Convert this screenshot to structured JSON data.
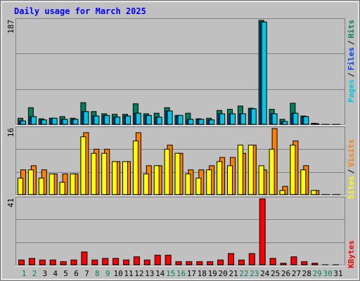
{
  "title": "Daily usage for March 2025",
  "legend_separator": "/",
  "chart_data": [
    {
      "type": "bar",
      "ylim": [
        0,
        187
      ],
      "yticks": [
        187
      ],
      "series": [
        {
          "name": "Hits",
          "color": "#00805c",
          "values": [
            11,
            30,
            10,
            11,
            14,
            11,
            39,
            23,
            19,
            18,
            18,
            37,
            19,
            20,
            30,
            16,
            20,
            10,
            11,
            25,
            27,
            33,
            29,
            187,
            27,
            9,
            38,
            15,
            2,
            0,
            0
          ]
        },
        {
          "name": "Files",
          "color": "#0040ff",
          "values": [
            6,
            14,
            8,
            11,
            9,
            9,
            23,
            15,
            16,
            13,
            15,
            20,
            16,
            13,
            24,
            16,
            9,
            9,
            8,
            19,
            19,
            19,
            28,
            184,
            19,
            5,
            20,
            14,
            1,
            0,
            0
          ]
        },
        {
          "name": "Pages",
          "color": "#00c8e0",
          "values": [
            6,
            14,
            8,
            11,
            9,
            9,
            23,
            15,
            16,
            13,
            15,
            20,
            16,
            13,
            24,
            16,
            9,
            9,
            8,
            19,
            19,
            19,
            28,
            184,
            19,
            5,
            20,
            14,
            1,
            0,
            0
          ]
        }
      ]
    },
    {
      "type": "bar",
      "ylim": [
        0,
        16
      ],
      "yticks": [
        16
      ],
      "series": [
        {
          "name": "Visits",
          "color": "#ff8000",
          "values": [
            6,
            7,
            6,
            5,
            5,
            5,
            15,
            11,
            11,
            8,
            8,
            15,
            7,
            7,
            12,
            10,
            6,
            6,
            7,
            9,
            9,
            10,
            12,
            6,
            16,
            2,
            13,
            7,
            1,
            0,
            0
          ]
        },
        {
          "name": "Sites",
          "color": "#ffff00",
          "values": [
            4,
            6,
            4,
            5,
            3,
            5,
            14,
            10,
            10,
            8,
            8,
            13,
            5,
            7,
            11,
            10,
            5,
            4,
            6,
            8,
            7,
            12,
            12,
            7,
            11,
            1,
            12,
            6,
            1,
            0,
            0
          ]
        }
      ]
    },
    {
      "type": "bar",
      "ylim": [
        0,
        41
      ],
      "yticks": [
        41
      ],
      "categories": [
        "1",
        "2",
        "3",
        "4",
        "5",
        "6",
        "7",
        "8",
        "9",
        "10",
        "11",
        "12",
        "13",
        "14",
        "15",
        "16",
        "17",
        "18",
        "19",
        "20",
        "21",
        "22",
        "23",
        "24",
        "25",
        "26",
        "27",
        "28",
        "29",
        "30",
        "31"
      ],
      "category_colors": [
        "#00805c",
        "#00805c",
        "#000000",
        "#000000",
        "#000000",
        "#000000",
        "#000000",
        "#00805c",
        "#00805c",
        "#000000",
        "#000000",
        "#000000",
        "#000000",
        "#000000",
        "#00805c",
        "#00805c",
        "#000000",
        "#000000",
        "#000000",
        "#000000",
        "#000000",
        "#00805c",
        "#00805c",
        "#000000",
        "#000000",
        "#000000",
        "#000000",
        "#000000",
        "#00805c",
        "#00805c",
        "#000000"
      ],
      "series": [
        {
          "name": "KBytes",
          "color": "#ff0000",
          "values": [
            3,
            4,
            3,
            3,
            2,
            3,
            8,
            3,
            4,
            4,
            3,
            5,
            3,
            6,
            6,
            2,
            2,
            2,
            2,
            3,
            7,
            3,
            7,
            41,
            4,
            1,
            5,
            2,
            1,
            0,
            0
          ]
        }
      ]
    }
  ]
}
